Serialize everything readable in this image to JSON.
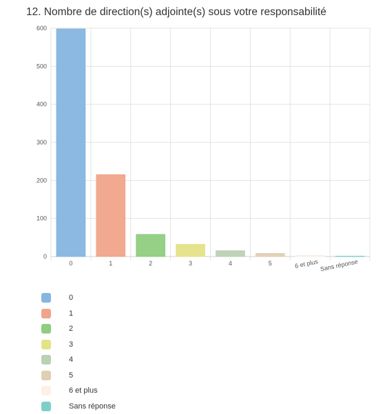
{
  "title": "12. Nombre de direction(s) adjointe(s) sous votre responsabilité",
  "chart_data": {
    "type": "bar",
    "categories": [
      "0",
      "1",
      "2",
      "3",
      "4",
      "5",
      "6 et plus",
      "Sans réponse"
    ],
    "values": [
      598,
      215,
      58,
      32,
      15,
      8,
      3,
      1
    ],
    "colors": [
      "#85b5e0",
      "#f0a48a",
      "#8fcd80",
      "#e4e287",
      "#bad1b3",
      "#dfcfb3",
      "#fcf0e8",
      "#7fcfc9"
    ],
    "ylim": [
      0,
      600
    ],
    "yticks": [
      0,
      100,
      200,
      300,
      400,
      500,
      600
    ],
    "grid": true,
    "legend": "bottom"
  }
}
